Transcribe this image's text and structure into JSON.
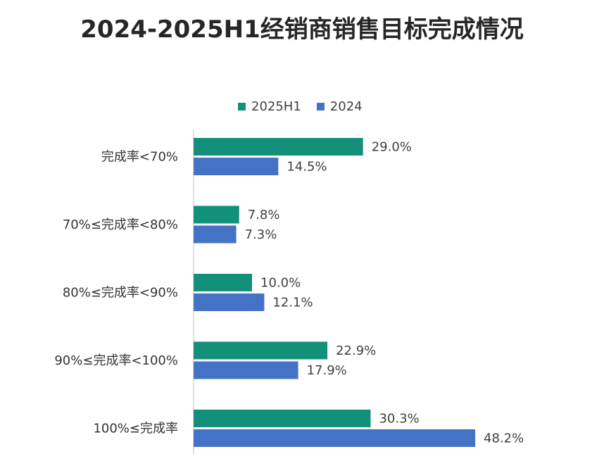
{
  "colors": {
    "series_2025H1": "#12907a",
    "series_2024": "#4472c4",
    "axis": "#bfbfbf"
  },
  "chart_data": {
    "type": "bar",
    "orientation": "horizontal",
    "title": "2024-2025H1经销商销售目标完成情况",
    "categories": [
      "完成率<70%",
      "70%≤完成率<80%",
      "80%≤完成率<90%",
      "90%≤完成率<100%",
      "100%≤完成率"
    ],
    "series": [
      {
        "name": "2025H1",
        "values": [
          29.0,
          7.8,
          10.0,
          22.9,
          30.3
        ],
        "labels": [
          "29.0%",
          "7.8%",
          "10.0%",
          "22.9%",
          "30.3%"
        ]
      },
      {
        "name": "2024",
        "values": [
          14.5,
          7.3,
          12.1,
          17.9,
          48.2
        ],
        "labels": [
          "14.5%",
          "7.3%",
          "12.1%",
          "17.9%",
          "48.2%"
        ]
      }
    ],
    "legend_position": "top",
    "grid": false,
    "value_unit": "%"
  }
}
